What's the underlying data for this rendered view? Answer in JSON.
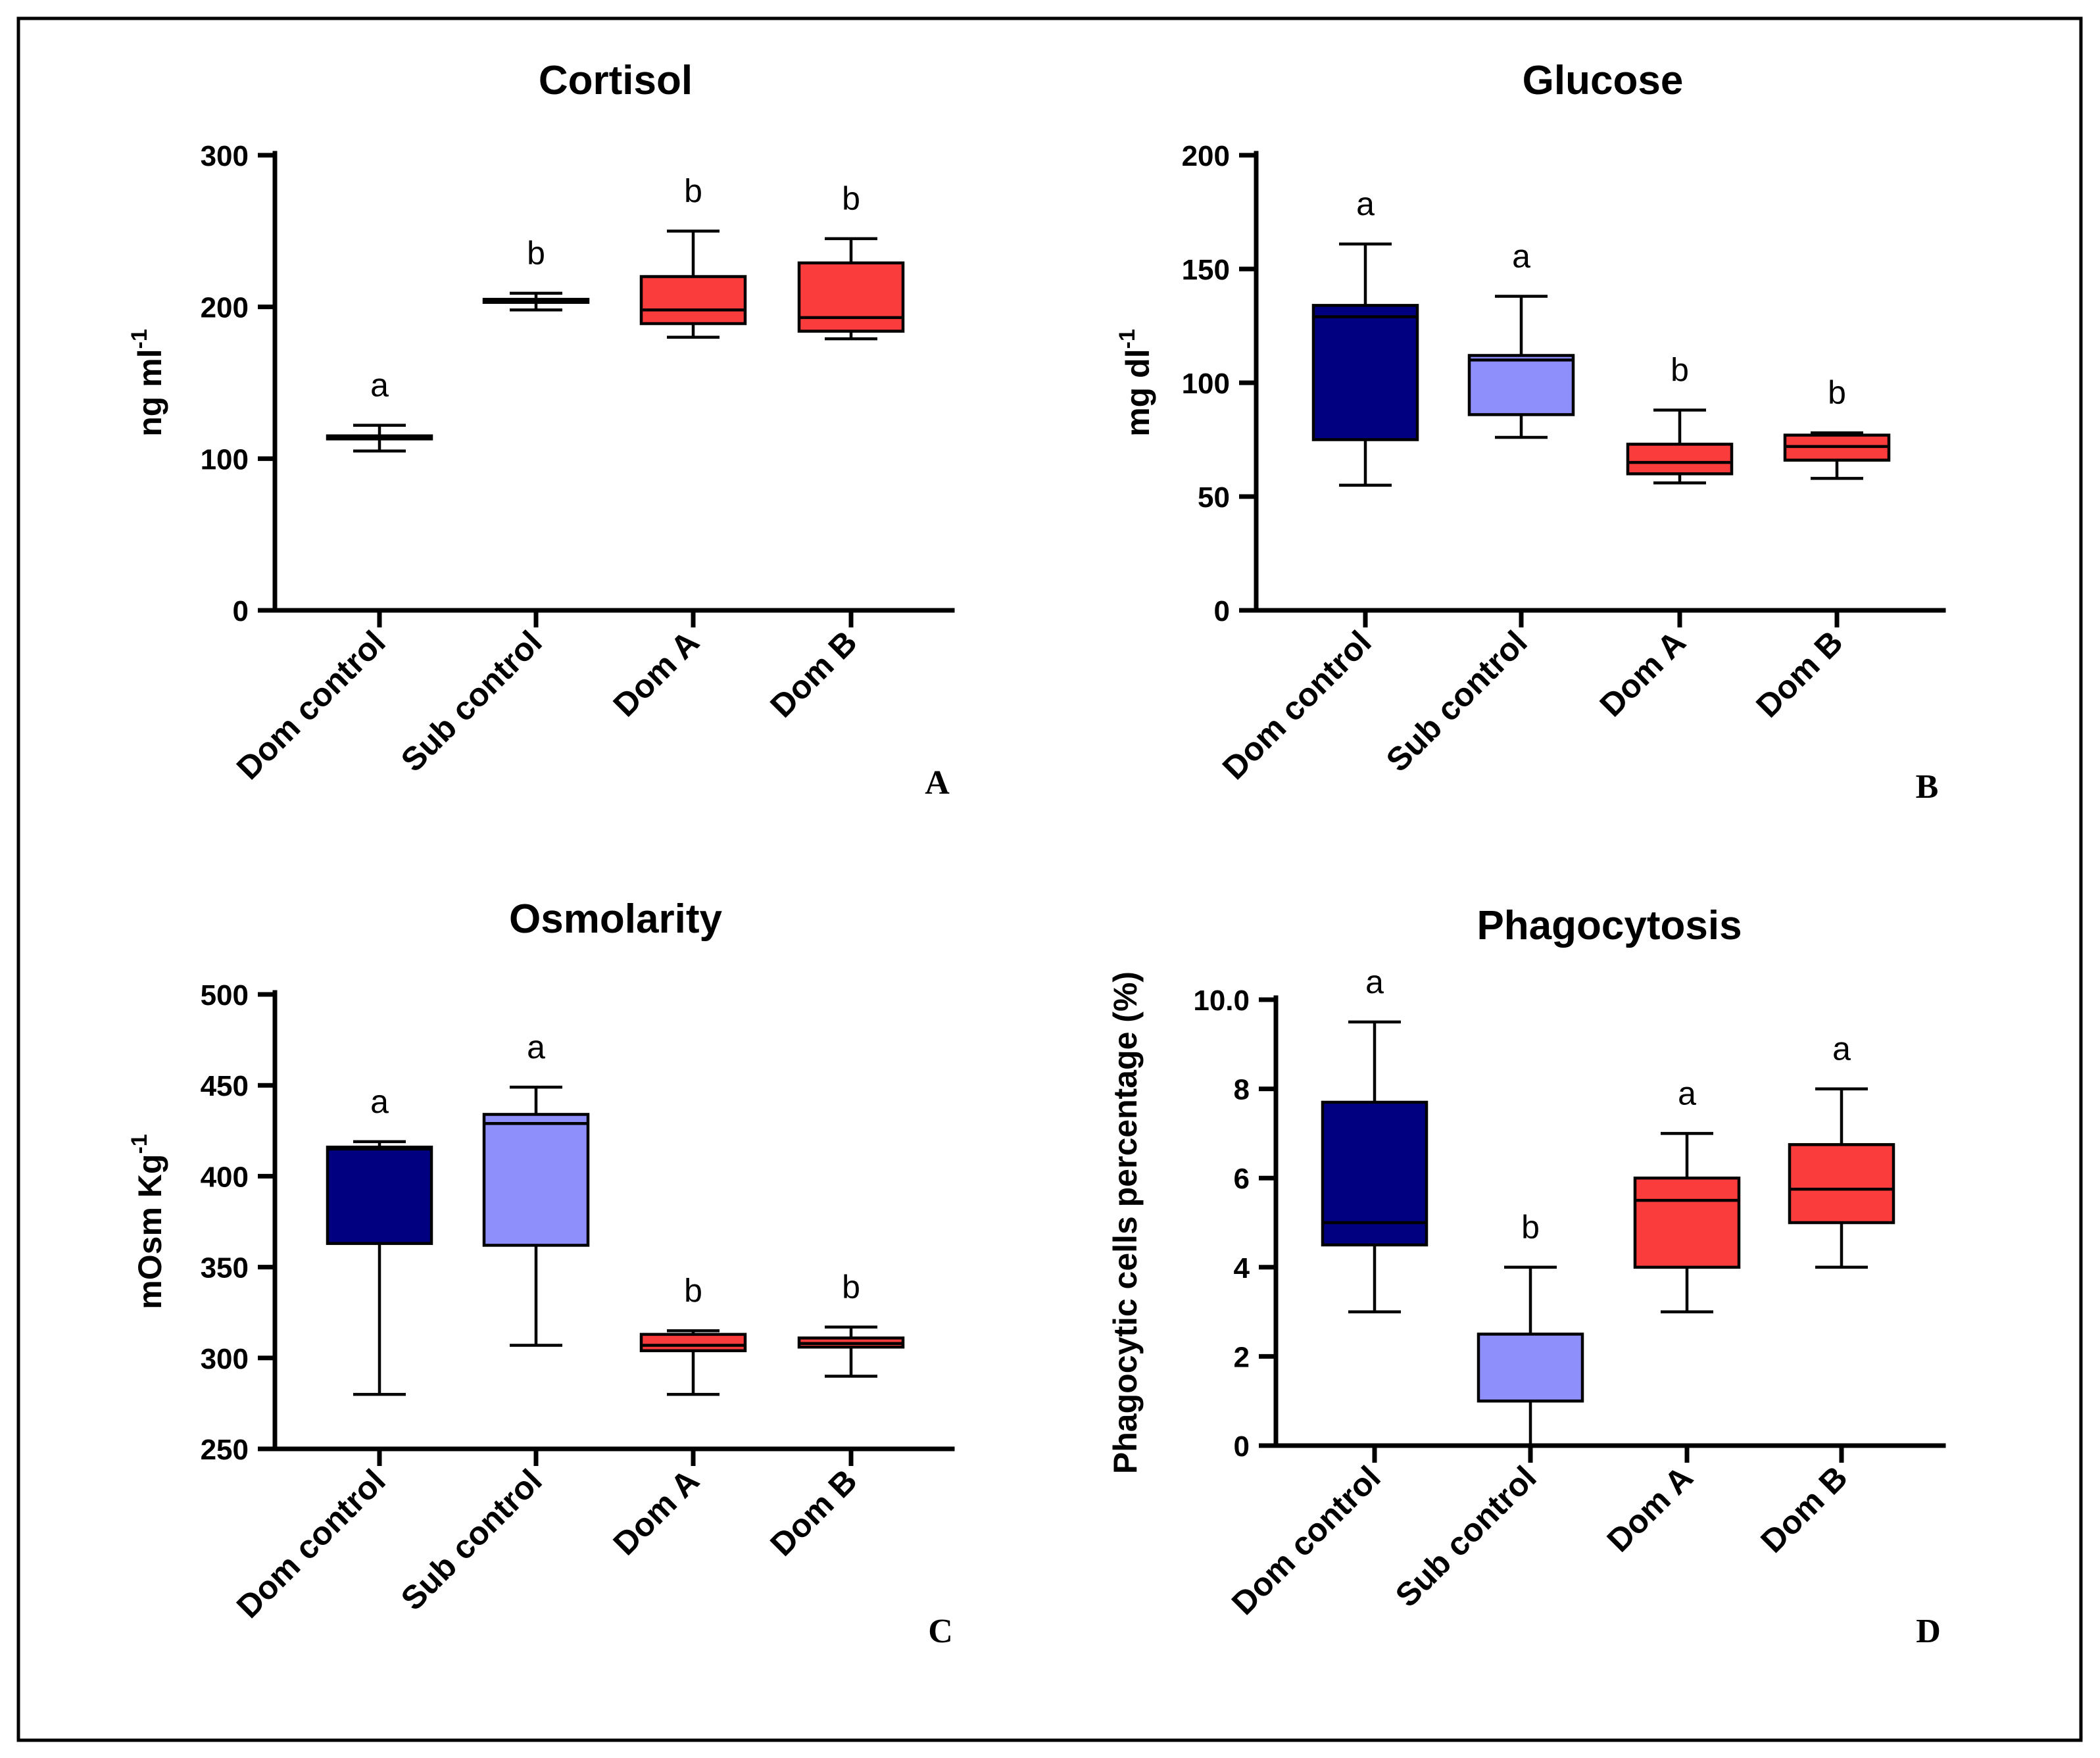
{
  "colors": {
    "dom_control": "#000080",
    "sub_control": "#8f8ffc",
    "dom_a": "#fb3c3c",
    "dom_b": "#fb3c3c"
  },
  "chart_data": [
    {
      "type": "box",
      "panel_letter": "A",
      "title": "Cortisol",
      "ylabel": "ng ml",
      "ylabel_superscript": "-1",
      "ylim": [
        0,
        300
      ],
      "yticks": [
        0,
        100,
        200,
        300
      ],
      "categories": [
        "Dom control",
        "Sub control",
        "Dom A",
        "Dom B"
      ],
      "groups": [
        {
          "name": "Dom control",
          "color": "#000080",
          "min": 105,
          "q1": 113,
          "median": 114,
          "q3": 115,
          "max": 122,
          "label": "a"
        },
        {
          "name": "Sub control",
          "color": "#8f8ffc",
          "min": 198,
          "q1": 203,
          "median": 204,
          "q3": 205,
          "max": 209,
          "label": "b"
        },
        {
          "name": "Dom A",
          "color": "#fb3c3c",
          "min": 180,
          "q1": 189,
          "median": 198,
          "q3": 220,
          "max": 250,
          "label": "b"
        },
        {
          "name": "Dom B",
          "color": "#fb3c3c",
          "min": 179,
          "q1": 184,
          "median": 193,
          "q3": 229,
          "max": 245,
          "label": "b"
        }
      ]
    },
    {
      "type": "box",
      "panel_letter": "B",
      "title": "Glucose",
      "ylabel": "mg dl",
      "ylabel_superscript": "-1",
      "ylim": [
        0,
        200
      ],
      "yticks": [
        0,
        50,
        100,
        150,
        200
      ],
      "categories": [
        "Dom control",
        "Sub control",
        "Dom A",
        "Dom B"
      ],
      "groups": [
        {
          "name": "Dom control",
          "color": "#000080",
          "min": 55,
          "q1": 75,
          "median": 129,
          "q3": 134,
          "max": 161,
          "label": "a"
        },
        {
          "name": "Sub control",
          "color": "#8f8ffc",
          "min": 76,
          "q1": 86,
          "median": 110,
          "q3": 112,
          "max": 138,
          "label": "a"
        },
        {
          "name": "Dom A",
          "color": "#fb3c3c",
          "min": 56,
          "q1": 60,
          "median": 65,
          "q3": 73,
          "max": 88,
          "label": "b"
        },
        {
          "name": "Dom B",
          "color": "#fb3c3c",
          "min": 58,
          "q1": 66,
          "median": 72,
          "q3": 77,
          "max": 78,
          "label": "b"
        }
      ]
    },
    {
      "type": "box",
      "panel_letter": "C",
      "title": "Osmolarity",
      "ylabel": "mOsm Kg",
      "ylabel_superscript": "-1",
      "ylim": [
        250,
        500
      ],
      "yticks": [
        250,
        300,
        350,
        400,
        450,
        500
      ],
      "categories": [
        "Dom control",
        "Sub control",
        "Dom A",
        "Dom B"
      ],
      "groups": [
        {
          "name": "Dom control",
          "color": "#000080",
          "min": 280,
          "q1": 363,
          "median": 415,
          "q3": 416,
          "max": 419,
          "label": "a"
        },
        {
          "name": "Sub control",
          "color": "#8f8ffc",
          "min": 307,
          "q1": 362,
          "median": 429,
          "q3": 434,
          "max": 449,
          "label": "a"
        },
        {
          "name": "Dom A",
          "color": "#fb3c3c",
          "min": 280,
          "q1": 304,
          "median": 307,
          "q3": 313,
          "max": 315,
          "label": "b"
        },
        {
          "name": "Dom B",
          "color": "#fb3c3c",
          "min": 290,
          "q1": 306,
          "median": 308,
          "q3": 311,
          "max": 317,
          "label": "b"
        }
      ]
    },
    {
      "type": "box",
      "panel_letter": "D",
      "title": "Phagocytosis",
      "ylabel": "Phagocytic cells percentage (%)",
      "ylabel_superscript": "",
      "ylim": [
        0,
        10
      ],
      "yticks": [
        0,
        2,
        4,
        6,
        8,
        10
      ],
      "yticks_text": [
        "0",
        "2",
        "4",
        "6",
        "8",
        "10.0"
      ],
      "categories": [
        "Dom control",
        "Sub control",
        "Dom A",
        "Dom B"
      ],
      "groups": [
        {
          "name": "Dom control",
          "color": "#000080",
          "min": 3,
          "q1": 4.5,
          "median": 5,
          "q3": 7.7,
          "max": 9.5,
          "label": "a"
        },
        {
          "name": "Sub control",
          "color": "#8f8ffc",
          "min": 0,
          "q1": 1,
          "median": 1,
          "q3": 2.5,
          "max": 4,
          "label": "b"
        },
        {
          "name": "Dom A",
          "color": "#fb3c3c",
          "min": 3,
          "q1": 4,
          "median": 5.5,
          "q3": 6,
          "max": 7,
          "label": "a"
        },
        {
          "name": "Dom B",
          "color": "#fb3c3c",
          "min": 4,
          "q1": 5,
          "median": 5.75,
          "q3": 6.75,
          "max": 8,
          "label": "a"
        }
      ]
    }
  ]
}
